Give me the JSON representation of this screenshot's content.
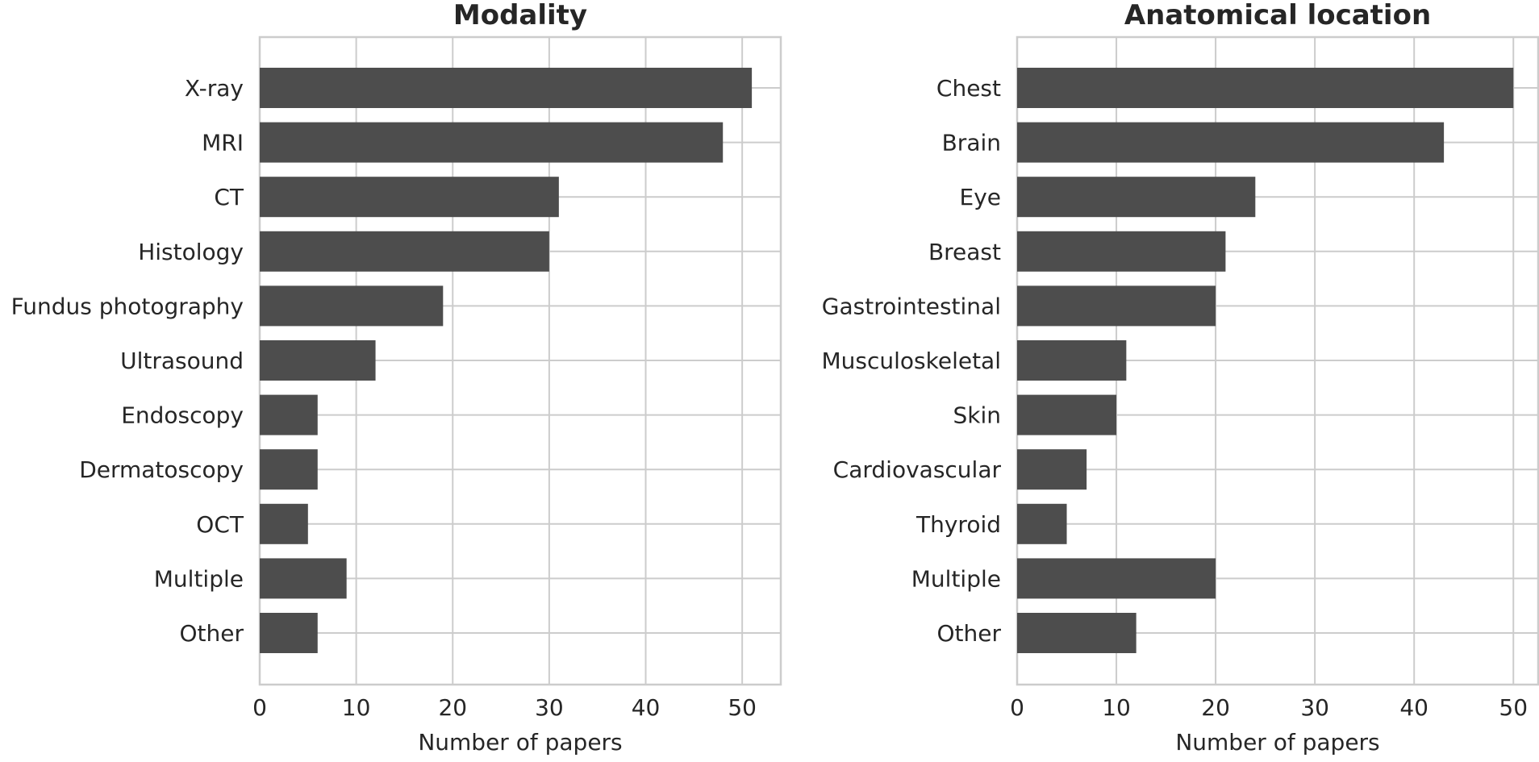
{
  "chart_data": [
    {
      "type": "bar",
      "orientation": "horizontal",
      "title": "Modality",
      "xlabel": "Number of papers",
      "ylabel": "",
      "categories": [
        "X-ray",
        "MRI",
        "CT",
        "Histology",
        "Fundus photography",
        "Ultrasound",
        "Endoscopy",
        "Dermatoscopy",
        "OCT",
        "Multiple",
        "Other"
      ],
      "values": [
        51,
        48,
        31,
        30,
        19,
        12,
        6,
        6,
        5,
        9,
        6
      ],
      "xlim": [
        0,
        54
      ],
      "xticks": [
        "0",
        "10",
        "20",
        "30",
        "40",
        "50"
      ],
      "color": "#4d4d4d",
      "grid": true
    },
    {
      "type": "bar",
      "orientation": "horizontal",
      "title": "Anatomical location",
      "xlabel": "Number of papers",
      "ylabel": "",
      "categories": [
        "Chest",
        "Brain",
        "Eye",
        "Breast",
        "Gastrointestinal",
        "Musculoskeletal",
        "Skin",
        "Cardiovascular",
        "Thyroid",
        "Multiple",
        "Other"
      ],
      "values": [
        50,
        43,
        24,
        21,
        20,
        11,
        10,
        7,
        5,
        20,
        12
      ],
      "xlim": [
        0,
        52.5
      ],
      "xticks": [
        "0",
        "10",
        "20",
        "30",
        "40",
        "50"
      ],
      "color": "#4d4d4d",
      "grid": true
    }
  ]
}
